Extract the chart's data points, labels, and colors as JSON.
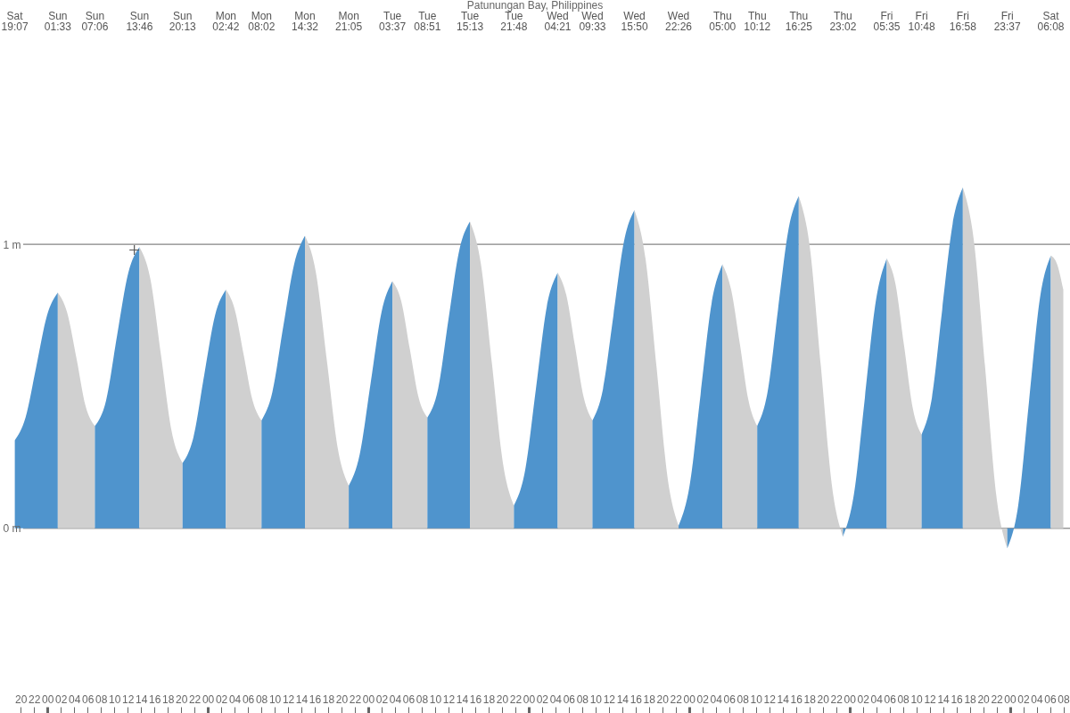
{
  "chart_data": {
    "type": "area",
    "title": "Patunungan Bay, Philippines",
    "xlim": [
      16.9,
      177
    ],
    "xticks": [
      20,
      22,
      {
        "value": 24,
        "label": "00"
      },
      {
        "value": 26,
        "label": "02"
      },
      {
        "value": 28,
        "label": "04"
      },
      {
        "value": 30,
        "label": "06"
      },
      {
        "value": 32,
        "label": "08"
      },
      {
        "value": 34,
        "label": "10"
      },
      {
        "value": 36,
        "label": "12"
      },
      {
        "value": 38,
        "label": "14"
      },
      {
        "value": 40,
        "label": "16"
      },
      {
        "value": 42,
        "label": "18"
      },
      {
        "value": 44,
        "label": "20"
      },
      {
        "value": 46,
        "label": "22"
      },
      {
        "value": 48,
        "label": "00"
      },
      {
        "value": 50,
        "label": "02"
      },
      {
        "value": 52,
        "label": "04"
      },
      {
        "value": 54,
        "label": "06"
      },
      {
        "value": 56,
        "label": "08"
      },
      {
        "value": 58,
        "label": "10"
      },
      {
        "value": 60,
        "label": "12"
      },
      {
        "value": 62,
        "label": "14"
      },
      {
        "value": 64,
        "label": "16"
      },
      {
        "value": 66,
        "label": "18"
      },
      {
        "value": 68,
        "label": "20"
      },
      {
        "value": 70,
        "label": "22"
      },
      {
        "value": 72,
        "label": "00"
      },
      {
        "value": 74,
        "label": "02"
      },
      {
        "value": 76,
        "label": "04"
      },
      {
        "value": 78,
        "label": "06"
      },
      {
        "value": 80,
        "label": "08"
      },
      {
        "value": 82,
        "label": "10"
      },
      {
        "value": 84,
        "label": "12"
      },
      {
        "value": 86,
        "label": "14"
      },
      {
        "value": 88,
        "label": "16"
      },
      {
        "value": 90,
        "label": "18"
      },
      {
        "value": 92,
        "label": "20"
      },
      {
        "value": 94,
        "label": "22"
      },
      {
        "value": 96,
        "label": "00"
      },
      {
        "value": 98,
        "label": "02"
      },
      {
        "value": 100,
        "label": "04"
      },
      {
        "value": 102,
        "label": "06"
      },
      {
        "value": 104,
        "label": "08"
      },
      {
        "value": 106,
        "label": "10"
      },
      {
        "value": 108,
        "label": "12"
      },
      {
        "value": 110,
        "label": "14"
      },
      {
        "value": 112,
        "label": "16"
      },
      {
        "value": 114,
        "label": "18"
      },
      {
        "value": 116,
        "label": "20"
      },
      {
        "value": 118,
        "label": "22"
      },
      {
        "value": 120,
        "label": "00"
      },
      {
        "value": 122,
        "label": "02"
      },
      {
        "value": 124,
        "label": "04"
      },
      {
        "value": 126,
        "label": "06"
      },
      {
        "value": 128,
        "label": "08"
      },
      {
        "value": 130,
        "label": "10"
      },
      {
        "value": 132,
        "label": "12"
      },
      {
        "value": 134,
        "label": "14"
      },
      {
        "value": 136,
        "label": "16"
      },
      {
        "value": 138,
        "label": "18"
      },
      {
        "value": 140,
        "label": "20"
      },
      {
        "value": 142,
        "label": "22"
      },
      {
        "value": 144,
        "label": "00"
      },
      {
        "value": 146,
        "label": "02"
      },
      {
        "value": 148,
        "label": "04"
      },
      {
        "value": 150,
        "label": "06"
      },
      {
        "value": 152,
        "label": "08"
      },
      {
        "value": 154,
        "label": "10"
      },
      {
        "value": 156,
        "label": "12"
      },
      {
        "value": 158,
        "label": "14"
      },
      {
        "value": 160,
        "label": "16"
      },
      {
        "value": 162,
        "label": "18"
      },
      {
        "value": 164,
        "label": "20"
      },
      {
        "value": 166,
        "label": "22"
      },
      {
        "value": 168,
        "label": "00"
      },
      {
        "value": 170,
        "label": "02"
      },
      {
        "value": 172,
        "label": "04"
      },
      {
        "value": 174,
        "label": "06"
      },
      {
        "value": 176,
        "label": "08"
      }
    ],
    "ylim": [
      -0.65,
      1.86
    ],
    "yticks": [
      {
        "value": 0,
        "label": "0 m"
      },
      {
        "value": 1,
        "label": "1 m"
      }
    ],
    "grid": "y",
    "annotations": [
      "Sat 19:07",
      "Sun 01:33",
      "Sun 07:06",
      "Sun 13:46",
      "Sun 20:13",
      "Mon 02:42",
      "Mon 08:02",
      "Mon 14:32",
      "Mon 21:05",
      "Tue 03:37",
      "Tue 08:51",
      "Tue 15:13",
      "Tue 21:48",
      "Wed 04:21",
      "Wed 09:33",
      "Wed 15:50",
      "Wed 22:26",
      "Thu 05:00",
      "Thu 10:12",
      "Thu 16:25",
      "Thu 23:02",
      "Fri 05:35",
      "Fri 10:48",
      "Fri 16:58",
      "Fri 23:37",
      "Sat 06:08"
    ],
    "series": [
      {
        "color": "#4f94cd",
        "x": [
          19.117,
          20.72,
          22.33,
          23.94,
          25.55
        ],
        "values": [
          0.31,
          0.39,
          0.57,
          0.75,
          0.83
        ]
      },
      {
        "color": "#d0d0d0",
        "x": [
          25.55,
          26.94,
          28.33,
          29.71,
          31.1
        ],
        "values": [
          0.83,
          0.76,
          0.6,
          0.43,
          0.36
        ]
      },
      {
        "color": "#4f94cd",
        "x": [
          31.1,
          32.77,
          34.43,
          36.1,
          37.767
        ],
        "values": [
          0.36,
          0.45,
          0.68,
          0.9,
          0.99
        ]
      },
      {
        "color": "#d0d0d0",
        "x": [
          37.767,
          39.38,
          40.99,
          42.6,
          44.217
        ],
        "values": [
          0.99,
          0.88,
          0.61,
          0.34,
          0.23
        ]
      },
      {
        "color": "#4f94cd",
        "x": [
          44.217,
          45.84,
          47.46,
          49.08,
          50.7
        ],
        "values": [
          0.23,
          0.32,
          0.54,
          0.75,
          0.84
        ]
      },
      {
        "color": "#d0d0d0",
        "x": [
          50.7,
          52.03,
          53.37,
          54.7,
          56.033
        ],
        "values": [
          0.84,
          0.77,
          0.61,
          0.45,
          0.38
        ]
      },
      {
        "color": "#4f94cd",
        "x": [
          56.033,
          57.66,
          59.28,
          60.91,
          62.533
        ],
        "values": [
          0.38,
          0.48,
          0.71,
          0.93,
          1.03
        ]
      },
      {
        "color": "#d0d0d0",
        "x": [
          62.533,
          64.17,
          65.81,
          67.45,
          69.083
        ],
        "values": [
          1.03,
          0.9,
          0.59,
          0.28,
          0.15
        ]
      },
      {
        "color": "#4f94cd",
        "x": [
          69.083,
          70.72,
          72.35,
          73.98,
          75.617
        ],
        "values": [
          0.15,
          0.26,
          0.51,
          0.76,
          0.87
        ]
      },
      {
        "color": "#d0d0d0",
        "x": [
          75.617,
          76.93,
          78.23,
          79.54,
          80.85
        ],
        "values": [
          0.87,
          0.8,
          0.63,
          0.46,
          0.39
        ]
      },
      {
        "color": "#4f94cd",
        "x": [
          80.85,
          82.44,
          84.03,
          85.63,
          87.217
        ],
        "values": [
          0.39,
          0.49,
          0.74,
          0.98,
          1.08
        ]
      },
      {
        "color": "#d0d0d0",
        "x": [
          87.217,
          88.86,
          90.51,
          92.15,
          93.8
        ],
        "values": [
          1.08,
          0.93,
          0.58,
          0.23,
          0.08
        ]
      },
      {
        "color": "#4f94cd",
        "x": [
          93.8,
          95.44,
          97.08,
          98.71,
          100.35
        ],
        "values": [
          0.08,
          0.2,
          0.49,
          0.78,
          0.9
        ]
      },
      {
        "color": "#d0d0d0",
        "x": [
          100.35,
          101.65,
          102.95,
          104.25,
          105.55
        ],
        "values": [
          0.9,
          0.82,
          0.64,
          0.46,
          0.38
        ]
      },
      {
        "color": "#4f94cd",
        "x": [
          105.55,
          107.12,
          108.69,
          110.26,
          111.833
        ],
        "values": [
          0.38,
          0.49,
          0.75,
          1.01,
          1.12
        ]
      },
      {
        "color": "#d0d0d0",
        "x": [
          111.833,
          113.48,
          115.13,
          116.78,
          118.433
        ],
        "values": [
          1.12,
          0.95,
          0.57,
          0.18,
          0.01
        ]
      },
      {
        "color": "#4f94cd",
        "x": [
          118.433,
          120.08,
          121.72,
          123.36,
          125
        ],
        "values": [
          0.01,
          0.15,
          0.47,
          0.79,
          0.93
        ]
      },
      {
        "color": "#d0d0d0",
        "x": [
          125,
          126.3,
          127.6,
          128.9,
          130.2
        ],
        "values": [
          0.93,
          0.84,
          0.65,
          0.45,
          0.36
        ]
      },
      {
        "color": "#4f94cd",
        "x": [
          130.2,
          131.75,
          133.31,
          134.86,
          136.417
        ],
        "values": [
          0.36,
          0.48,
          0.77,
          1.05,
          1.17
        ]
      },
      {
        "color": "#d0d0d0",
        "x": [
          136.417,
          138.07,
          139.73,
          141.38,
          143.033
        ],
        "values": [
          1.17,
          0.99,
          0.57,
          0.15,
          -0.03
        ]
      },
      {
        "color": "#4f94cd",
        "x": [
          143.033,
          144.67,
          146.31,
          147.95,
          149.583
        ],
        "values": [
          -0.03,
          0.12,
          0.46,
          0.8,
          0.95
        ]
      },
      {
        "color": "#d0d0d0",
        "x": [
          149.583,
          150.89,
          152.19,
          153.5,
          154.8
        ],
        "values": [
          0.95,
          0.86,
          0.64,
          0.42,
          0.33
        ]
      },
      {
        "color": "#4f94cd",
        "x": [
          154.8,
          156.34,
          157.88,
          159.43,
          160.967
        ],
        "values": [
          0.33,
          0.46,
          0.77,
          1.07,
          1.2
        ]
      },
      {
        "color": "#d0d0d0",
        "x": [
          160.967,
          162.63,
          164.29,
          165.95,
          167.617
        ],
        "values": [
          1.2,
          1.01,
          0.57,
          0.12,
          -0.07
        ]
      },
      {
        "color": "#4f94cd",
        "x": [
          167.617,
          169.25,
          170.88,
          172.5,
          174.133
        ],
        "values": [
          -0.07,
          0.08,
          0.45,
          0.81,
          0.96
        ]
      },
      {
        "color": "#d0d0d0",
        "x": [
          174.133,
          175.07,
          176
        ],
        "values": [
          0.96,
          0.93,
          0.84
        ]
      },
      {
        "type": "scatter",
        "marker": "cross",
        "color": "#555555",
        "x": [
          37.0
        ],
        "values": [
          0.98
        ]
      }
    ]
  }
}
